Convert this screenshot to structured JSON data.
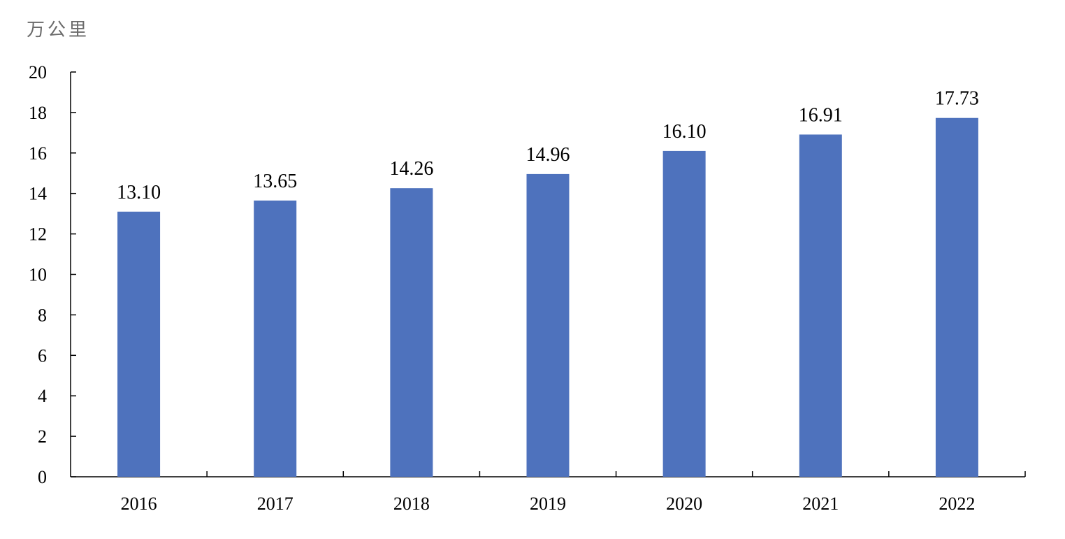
{
  "chart_data": {
    "type": "bar",
    "unit_label": "万公里",
    "categories": [
      "2016",
      "2017",
      "2018",
      "2019",
      "2020",
      "2021",
      "2022"
    ],
    "values": [
      13.1,
      13.65,
      14.26,
      14.96,
      16.1,
      16.91,
      17.73
    ],
    "data_labels": [
      "13.10",
      "13.65",
      "14.26",
      "14.96",
      "16.10",
      "16.91",
      "17.73"
    ],
    "y_ticks": [
      "0",
      "2",
      "4",
      "6",
      "8",
      "10",
      "12",
      "14",
      "16",
      "18",
      "20"
    ],
    "ylim": [
      0,
      20
    ],
    "bar_color": "#4e72bd",
    "grid": false,
    "legend": "none"
  }
}
